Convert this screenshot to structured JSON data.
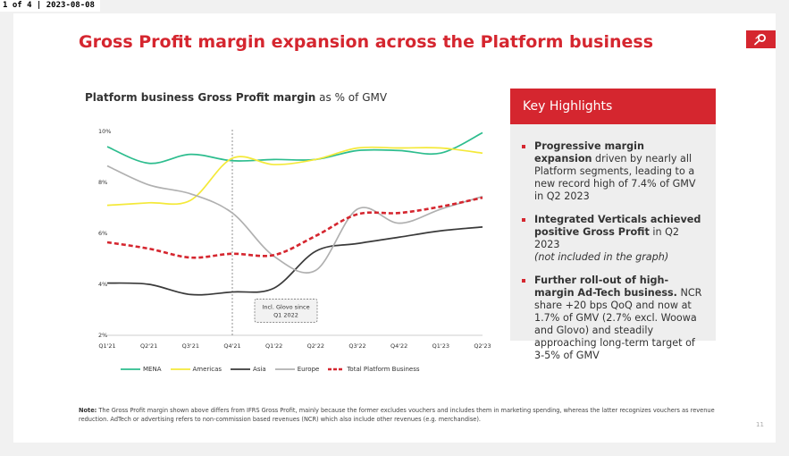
{
  "viewer": {
    "status": "1 of 4 | 2023-08-08"
  },
  "slide": {
    "title": "Gross Profit margin expansion across the Platform business",
    "page_number": "11"
  },
  "chart_title": {
    "bold": "Platform business Gross Profit margin",
    "rest": " as % of GMV"
  },
  "chart_data": {
    "type": "line",
    "categories": [
      "Q1'21",
      "Q2'21",
      "Q3'21",
      "Q4'21",
      "Q1'22",
      "Q2'22",
      "Q3'22",
      "Q4'22",
      "Q1'23",
      "Q2'23"
    ],
    "ylim": [
      2,
      10
    ],
    "yticks": [
      "2%",
      "4%",
      "6%",
      "8%",
      "10%"
    ],
    "series": [
      {
        "name": "MENA",
        "color": "#2dbd8e",
        "style": "solid",
        "values": [
          9.4,
          8.75,
          9.1,
          8.85,
          8.9,
          8.9,
          9.25,
          9.25,
          9.15,
          9.95
        ]
      },
      {
        "name": "Americas",
        "color": "#f4e93a",
        "style": "solid",
        "values": [
          7.1,
          7.2,
          7.3,
          8.95,
          8.7,
          8.9,
          9.35,
          9.35,
          9.35,
          9.15
        ]
      },
      {
        "name": "Asia",
        "color": "#3a3a3a",
        "style": "solid",
        "values": [
          4.05,
          4.0,
          3.6,
          3.7,
          3.85,
          5.3,
          5.6,
          5.85,
          6.1,
          6.25
        ]
      },
      {
        "name": "Europe",
        "color": "#b0b0b0",
        "style": "solid",
        "values": [
          8.65,
          7.9,
          7.55,
          6.8,
          5.1,
          4.55,
          6.95,
          6.4,
          6.95,
          7.45
        ]
      },
      {
        "name": "Total Platform Business",
        "color": "#d5262f",
        "style": "dashed",
        "values": [
          5.65,
          5.4,
          5.05,
          5.2,
          5.15,
          5.9,
          6.75,
          6.8,
          7.05,
          7.4
        ]
      }
    ],
    "annotation": {
      "text": "Incl. Glovo since Q1 2022",
      "at_category": "Q4'21"
    },
    "grid": false,
    "legend": "bottom"
  },
  "highlights": {
    "title": "Key Highlights",
    "items": [
      {
        "bold": "Progressive margin expansion",
        "text": " driven by nearly all Platform segments, leading to a new record high of 7.4% of GMV in Q2 2023",
        "italic": ""
      },
      {
        "bold": "Integrated Verticals achieved positive Gross Profit",
        "text": " in Q2 2023",
        "italic": "(not included in the graph)"
      },
      {
        "bold": "Further roll-out of high-margin Ad-Tech business.",
        "text": " NCR share +20 bps QoQ and now at 1.7% of GMV (2.7% excl. Woowa and Glovo) and steadily approaching long-term target of 3-5% of GMV",
        "italic": ""
      }
    ]
  },
  "note": {
    "label": "Note:",
    "text": " The Gross Profit margin shown above differs from IFRS Gross Profit, mainly because the former excludes vouchers and includes them in marketing spending, whereas the latter recognizes vouchers as revenue reduction. AdTech or advertising refers to non-commission based revenues (NCR) which also include other revenues (e.g. merchandise)."
  }
}
